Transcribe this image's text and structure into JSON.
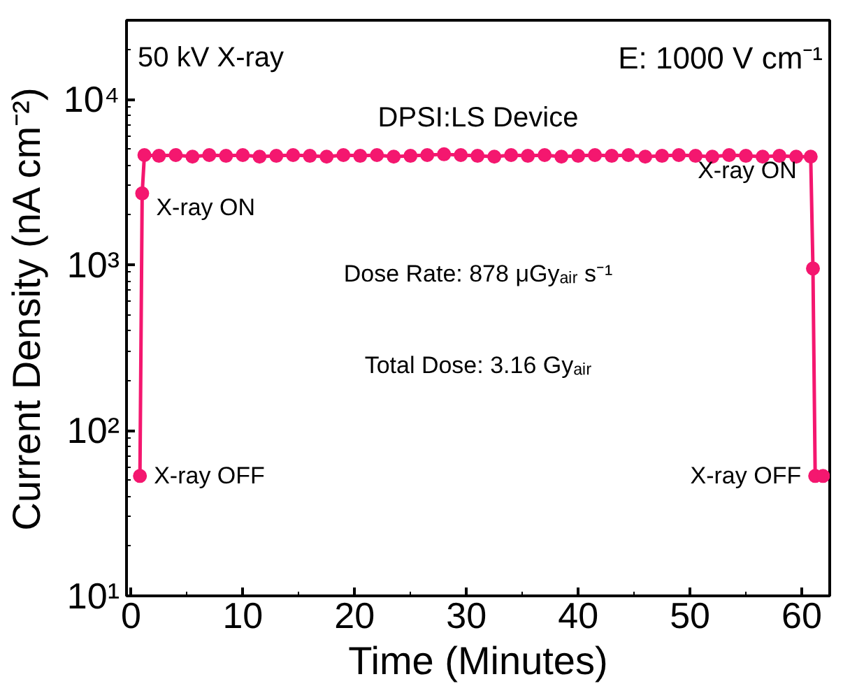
{
  "chart_data": {
    "type": "line",
    "xlabel": "Time (Minutes)",
    "ylabel": "Current Density (nA cm⁻²)",
    "x": [
      0.8,
      1.0,
      1.2,
      2.5,
      4,
      5.5,
      7,
      8.5,
      10,
      11.5,
      13,
      14.5,
      16,
      17.5,
      19,
      20.5,
      22,
      23.5,
      25,
      26.5,
      28,
      29.5,
      31,
      32.5,
      34,
      35.5,
      37,
      38.5,
      40,
      41.5,
      43,
      44.5,
      46,
      47.5,
      49,
      50.5,
      52,
      53.5,
      55,
      56.5,
      58,
      59.5,
      60.8,
      61.0,
      61.2,
      61.9
    ],
    "series": [
      {
        "color": "#f4176f",
        "values": [
          53,
          2700,
          4600,
          4550,
          4600,
          4500,
          4600,
          4550,
          4600,
          4500,
          4550,
          4600,
          4550,
          4500,
          4600,
          4550,
          4600,
          4500,
          4550,
          4600,
          4650,
          4600,
          4550,
          4500,
          4600,
          4550,
          4600,
          4500,
          4550,
          4600,
          4550,
          4600,
          4500,
          4550,
          4600,
          4550,
          4500,
          4600,
          4550,
          4500,
          4550,
          4500,
          4500,
          950,
          53,
          53
        ]
      }
    ],
    "marker": "circle",
    "line_style": "solid",
    "log": "y",
    "xlim": [
      -0.4,
      62.5
    ],
    "xticks": [
      0,
      10,
      20,
      30,
      40,
      50,
      60
    ],
    "ylim": [
      10,
      30000
    ],
    "yticks": [
      {
        "value": 10,
        "label": "10¹"
      },
      {
        "value": 100,
        "label": "10²"
      },
      {
        "value": 1000,
        "label": "10³"
      },
      {
        "value": 10000,
        "label": "10⁴"
      }
    ],
    "grid": false,
    "annotations": [
      "50 kV X-ray",
      "E: 1000 V cm⁻¹",
      "DPSI:LS Device",
      "Dose Rate: 878 μGyₐᵢᵣ s⁻¹",
      "Total Dose: 3.16 Gyₐᵢᵣ",
      {
        "text": "X-ray ON",
        "x": 1.0,
        "y": 2700
      },
      {
        "text": "X-ray OFF",
        "x": 0.8,
        "y": 53
      },
      {
        "text": "X-ray ON",
        "x": 60.8,
        "y": 4500
      },
      {
        "text": "X-ray OFF",
        "x": 61.2,
        "y": 53
      }
    ]
  }
}
